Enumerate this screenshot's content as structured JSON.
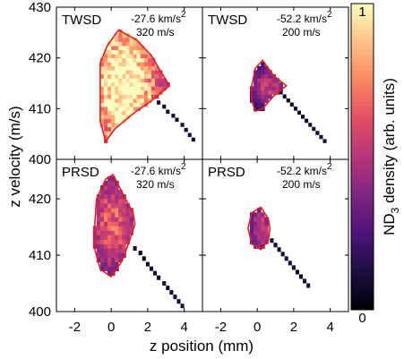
{
  "chart_data": {
    "type": "heatmap",
    "xlabel": "z position (mm)",
    "ylabel": "z velocity (m/s)",
    "colorbar_label": "ND",
    "colorbar_label_sub": "3",
    "colorbar_label_rest": " density (arb. units)",
    "colorbar_range": [
      0,
      1
    ],
    "colorbar_ticks": [
      "0",
      "1"
    ],
    "colormap": "magma",
    "xlim": [
      -3,
      5
    ],
    "x_ticks": [
      "-2",
      "0",
      "2",
      "4"
    ],
    "x_tick_values": [
      -2,
      0,
      2,
      4
    ],
    "ylim_top": [
      400,
      430
    ],
    "y_ticks_top": [
      "430",
      "420",
      "410",
      "400"
    ],
    "y_tick_values_top": [
      430,
      420,
      410,
      400
    ],
    "ylim_bottom": [
      400,
      427
    ],
    "y_ticks_bottom": [
      "420",
      "410",
      "400"
    ],
    "y_tick_values_bottom": [
      420,
      410,
      400
    ],
    "acceptance_color": "#e02020",
    "panels": [
      {
        "method": "TWSD",
        "decel": "-27.6 km/s",
        "decel_sup": "2",
        "speed": "320 m/s",
        "packet": {
          "cx": 0.7,
          "cy": 414.8,
          "sx": 1.2,
          "sy": 8.5,
          "peak": 1.0
        },
        "tail": [
          [
            2.6,
            411.2
          ],
          [
            2.9,
            410.4
          ],
          [
            3.1,
            409.4
          ],
          [
            3.4,
            408.6
          ],
          [
            3.6,
            407.8
          ],
          [
            3.9,
            406.8
          ],
          [
            4.1,
            405.8
          ],
          [
            4.3,
            404.8
          ],
          [
            4.5,
            403.9
          ]
        ],
        "acceptance": [
          [
            -0.6,
            415.5
          ],
          [
            -0.6,
            419
          ],
          [
            -0.2,
            422.5
          ],
          [
            0.4,
            425.5
          ],
          [
            1.4,
            423.5
          ],
          [
            2.2,
            420.5
          ],
          [
            2.6,
            418
          ],
          [
            3.2,
            414.5
          ],
          [
            2.2,
            411.5
          ],
          [
            1.2,
            409
          ],
          [
            0.2,
            406
          ],
          [
            -0.3,
            403.5
          ],
          [
            -0.6,
            407.5
          ],
          [
            -0.6,
            415.5
          ]
        ]
      },
      {
        "method": "TWSD",
        "decel": "-52.2 km/s",
        "decel_sup": "2",
        "speed": "200 m/s",
        "packet": {
          "cx": 0.6,
          "cy": 414.5,
          "sx": 0.5,
          "sy": 2.0,
          "peak": 0.45
        },
        "tail": [
          [
            1.3,
            413.2
          ],
          [
            1.5,
            412.4
          ],
          [
            1.7,
            411.6
          ],
          [
            1.9,
            410.8
          ],
          [
            2.1,
            410.0
          ],
          [
            2.3,
            409.2
          ],
          [
            2.5,
            408.4
          ],
          [
            2.7,
            407.6
          ],
          [
            2.9,
            406.8
          ],
          [
            3.1,
            406.0
          ],
          [
            3.3,
            405.2
          ],
          [
            3.5,
            404.4
          ],
          [
            3.7,
            403.6
          ]
        ],
        "acceptance": [
          [
            -0.3,
            414.5
          ],
          [
            -0.1,
            418
          ],
          [
            0.3,
            419.5
          ],
          [
            0.9,
            416.5
          ],
          [
            1.6,
            414.5
          ],
          [
            0.9,
            412.5
          ],
          [
            0.3,
            410
          ],
          [
            -0.1,
            409.5
          ],
          [
            -0.3,
            411.5
          ],
          [
            -0.3,
            414.5
          ]
        ]
      },
      {
        "method": "PRSD",
        "decel": "-27.6 km/s",
        "decel_sup": "2",
        "speed": "320 m/s",
        "packet": {
          "cx": 0.1,
          "cy": 415.8,
          "sx": 0.8,
          "sy": 5.2,
          "peak": 0.55
        },
        "tail": [
          [
            1.3,
            411.2
          ],
          [
            1.6,
            410.4
          ],
          [
            1.8,
            409.4
          ],
          [
            2.0,
            408.4
          ],
          [
            2.2,
            407.6
          ],
          [
            2.4,
            406.8
          ],
          [
            2.6,
            406.0
          ],
          [
            2.9,
            405.0
          ],
          [
            3.1,
            404.2
          ],
          [
            3.3,
            403.4
          ],
          [
            3.5,
            402.6
          ],
          [
            3.7,
            401.8
          ],
          [
            3.9,
            401.0
          ]
        ],
        "acceptance": [
          [
            -0.9,
            415.5
          ],
          [
            -0.8,
            420
          ],
          [
            -0.3,
            423.5
          ],
          [
            0.1,
            424.3
          ],
          [
            0.7,
            420.5
          ],
          [
            1.2,
            417.5
          ],
          [
            1.3,
            415.5
          ],
          [
            1.0,
            412.5
          ],
          [
            0.6,
            409
          ],
          [
            0.0,
            406.2
          ],
          [
            -0.6,
            407.5
          ],
          [
            -0.9,
            411
          ],
          [
            -0.9,
            415.5
          ]
        ]
      },
      {
        "method": "PRSD",
        "decel": "-52.2 km/s",
        "decel_sup": "2",
        "speed": "200 m/s",
        "packet": {
          "cx": 0.2,
          "cy": 414.8,
          "sx": 0.35,
          "sy": 2.5,
          "peak": 0.42
        },
        "tail": [
          [
            0.8,
            412.6
          ],
          [
            1.0,
            411.8
          ],
          [
            1.2,
            411.0
          ],
          [
            1.4,
            410.2
          ],
          [
            1.6,
            409.4
          ],
          [
            1.8,
            408.6
          ],
          [
            2.0,
            407.8
          ],
          [
            2.2,
            407.0
          ],
          [
            2.4,
            406.2
          ],
          [
            2.6,
            405.4
          ],
          [
            2.8,
            404.6
          ]
        ],
        "acceptance": [
          [
            -0.5,
            414.8
          ],
          [
            -0.3,
            417.5
          ],
          [
            0.2,
            418.5
          ],
          [
            0.6,
            416.5
          ],
          [
            0.7,
            414.8
          ],
          [
            0.6,
            412.5
          ],
          [
            0.2,
            411
          ],
          [
            -0.3,
            412
          ],
          [
            -0.5,
            414.8
          ]
        ]
      }
    ]
  }
}
